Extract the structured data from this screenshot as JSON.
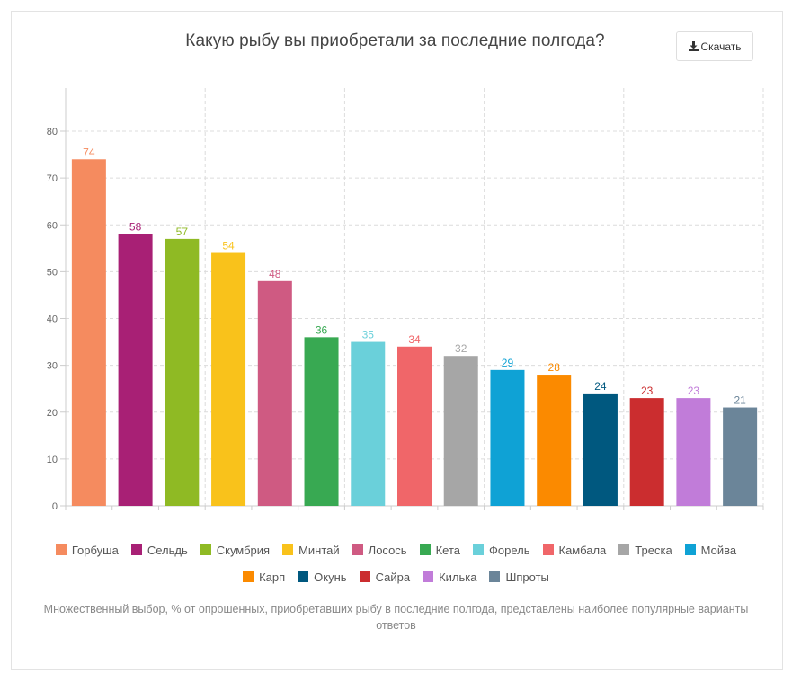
{
  "header": {
    "title": "Какую рыбу вы приобретали за последние полгода?",
    "download_label": "Скачать",
    "download_icon": "download-icon"
  },
  "chart_data": {
    "type": "bar",
    "title": "Какую рыбу вы приобретали за последние полгода?",
    "xlabel": "",
    "ylabel": "",
    "ylim": [
      0,
      80
    ],
    "yticks": [
      0,
      10,
      20,
      30,
      40,
      50,
      60,
      70,
      80
    ],
    "grid": true,
    "legend_position": "bottom",
    "categories": [
      "Горбуша",
      "Сельдь",
      "Скумбрия",
      "Минтай",
      "Лосось",
      "Кета",
      "Форель",
      "Камбала",
      "Треска",
      "Мойва",
      "Карп",
      "Окунь",
      "Сайра",
      "Килька",
      "Шпроты"
    ],
    "values": [
      74,
      58,
      57,
      54,
      48,
      36,
      35,
      34,
      32,
      29,
      28,
      24,
      23,
      23,
      21
    ],
    "colors": [
      "#f58b5f",
      "#a82075",
      "#8fba24",
      "#f9c21b",
      "#cf5a82",
      "#38a952",
      "#6ad0da",
      "#f06669",
      "#a6a6a6",
      "#0fa2d5",
      "#fb8a00",
      "#00587f",
      "#cb2d2f",
      "#c17cd9",
      "#6b8599"
    ]
  },
  "footnote": "Множественный выбор, % от опрошенных, приобретавших рыбу в последние полгода, представлены наиболее популярные варианты ответов"
}
